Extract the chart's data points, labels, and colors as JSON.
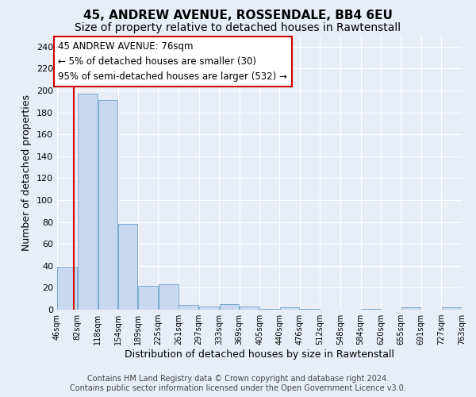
{
  "title": "45, ANDREW AVENUE, ROSSENDALE, BB4 6EU",
  "subtitle": "Size of property relative to detached houses in Rawtenstall",
  "xlabel": "Distribution of detached houses by size in Rawtenstall",
  "ylabel": "Number of detached properties",
  "footnote1": "Contains HM Land Registry data © Crown copyright and database right 2024.",
  "footnote2": "Contains public sector information licensed under the Open Government Licence v3.0.",
  "annotation_line1": "45 ANDREW AVENUE: 76sqm",
  "annotation_line2": "← 5% of detached houses are smaller (30)",
  "annotation_line3": "95% of semi-detached houses are larger (532) →",
  "property_size": 76,
  "bins": [
    46,
    82,
    118,
    154,
    189,
    225,
    261,
    297,
    333,
    369,
    405,
    440,
    476,
    512,
    548,
    584,
    620,
    655,
    691,
    727,
    763
  ],
  "bar_values": [
    39,
    197,
    191,
    78,
    22,
    23,
    4,
    3,
    5,
    3,
    1,
    2,
    1,
    0,
    0,
    1,
    0,
    2,
    0,
    2
  ],
  "bar_color": "#c8d9ef",
  "bar_edge_color": "#7aaad0",
  "vline_color": "#cc0000",
  "vline_x": 76,
  "ylim": [
    0,
    250
  ],
  "yticks": [
    0,
    20,
    40,
    60,
    80,
    100,
    120,
    140,
    160,
    180,
    200,
    220,
    240
  ],
  "bg_color": "#e8eef8",
  "plot_bg_color": "#e8eef8",
  "annotation_box_color": "#ffffff",
  "annotation_box_edge": "#cc0000",
  "title_fontsize": 11,
  "subtitle_fontsize": 10,
  "axis_label_fontsize": 9,
  "tick_fontsize": 8,
  "annotation_fontsize": 8.5,
  "grid_color": "#ffffff"
}
